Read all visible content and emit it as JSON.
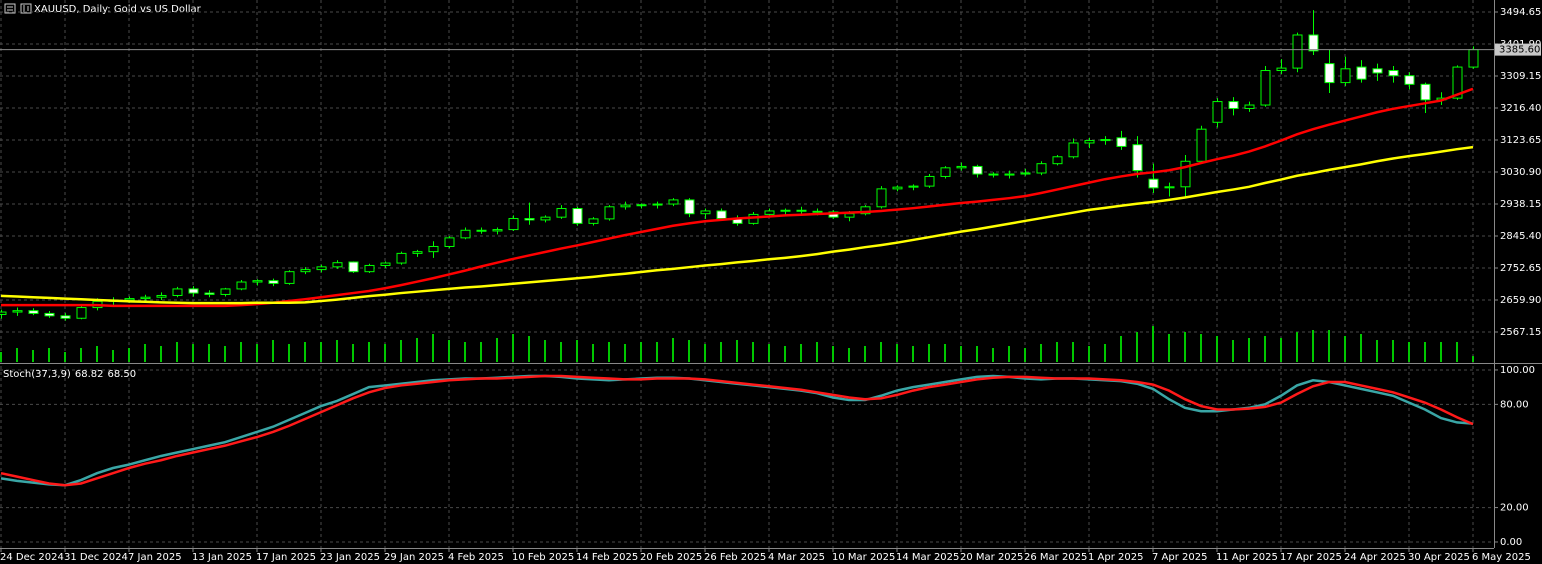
{
  "chart_data": [
    {
      "type": "candlestick",
      "title": "XAUUSD, Daily:  Gold vs US Dollar",
      "categories": [
        "24 Dec 2024",
        null,
        null,
        null,
        "31 Dec 2024",
        null,
        null,
        null,
        "7 Jan 2025",
        null,
        null,
        null,
        "13 Jan 2025",
        null,
        null,
        null,
        "17 Jan 2025",
        null,
        null,
        null,
        "23 Jan 2025",
        null,
        null,
        null,
        "29 Jan 2025",
        null,
        null,
        null,
        "4 Feb 2025",
        null,
        null,
        null,
        "10 Feb 2025",
        null,
        null,
        null,
        "14 Feb 2025",
        null,
        null,
        null,
        "20 Feb 2025",
        null,
        null,
        null,
        "26 Feb 2025",
        null,
        null,
        null,
        "4 Mar 2025",
        null,
        null,
        null,
        "10 Mar 2025",
        null,
        null,
        null,
        "14 Mar 2025",
        null,
        null,
        null,
        "20 Mar 2025",
        null,
        null,
        null,
        "26 Mar 2025",
        null,
        null,
        null,
        "1 Apr 2025",
        null,
        null,
        null,
        "7 Apr 2025",
        null,
        null,
        null,
        "11 Apr 2025",
        null,
        null,
        null,
        "17 Apr 2025",
        null,
        null,
        null,
        "24 Apr 2025",
        null,
        null,
        null,
        "30 Apr 2025",
        null,
        null,
        null,
        "6 May 2025"
      ],
      "open": [
        2618,
        2625,
        2629,
        2621,
        2614,
        2607,
        2638,
        2656,
        2660,
        2664,
        2668,
        2673,
        2692,
        2680,
        2676,
        2692,
        2712,
        2716,
        2708,
        2742,
        2748,
        2756,
        2770,
        2742,
        2760,
        2767,
        2795,
        2800,
        2815,
        2840,
        2862,
        2860,
        2864,
        2896,
        2892,
        2900,
        2925,
        2882,
        2895,
        2930,
        2935,
        2936,
        2938,
        2950,
        2910,
        2918,
        2896,
        2882,
        2908,
        2918,
        2920,
        2917,
        2915,
        2900,
        2910,
        2930,
        2982,
        2987,
        2990,
        3018,
        3043,
        3047,
        3025,
        3022,
        3025,
        3028,
        3055,
        3075,
        3115,
        3122,
        3130,
        3110,
        3010,
        2985,
        2988,
        3062,
        3175,
        3235,
        3215,
        3225,
        3325,
        3332,
        3428,
        3345,
        3290,
        3335,
        3330,
        3325,
        3310,
        3285,
        3240,
        3245,
        3335
      ],
      "high": [
        2632,
        2638,
        2636,
        2628,
        2622,
        2642,
        2665,
        2668,
        2670,
        2675,
        2682,
        2698,
        2700,
        2688,
        2695,
        2718,
        2720,
        2722,
        2746,
        2755,
        2762,
        2775,
        2772,
        2765,
        2772,
        2800,
        2805,
        2830,
        2845,
        2870,
        2870,
        2870,
        2905,
        2942,
        2905,
        2935,
        2930,
        2900,
        2935,
        2945,
        2940,
        2945,
        2955,
        2955,
        2925,
        2925,
        2905,
        2915,
        2925,
        2925,
        2930,
        2925,
        2920,
        2918,
        2935,
        2990,
        2992,
        2995,
        3025,
        3048,
        3058,
        3052,
        3030,
        3035,
        3040,
        3062,
        3080,
        3128,
        3130,
        3135,
        3150,
        3135,
        3055,
        3000,
        3080,
        3165,
        3245,
        3248,
        3235,
        3338,
        3358,
        3435,
        3500,
        3385,
        3365,
        3355,
        3345,
        3338,
        3320,
        3290,
        3262,
        3340,
        3395
      ],
      "low": [
        2606,
        2614,
        2616,
        2608,
        2600,
        2604,
        2630,
        2640,
        2652,
        2655,
        2660,
        2668,
        2670,
        2668,
        2670,
        2688,
        2702,
        2700,
        2704,
        2735,
        2740,
        2750,
        2738,
        2738,
        2752,
        2762,
        2785,
        2782,
        2810,
        2836,
        2852,
        2850,
        2860,
        2878,
        2885,
        2895,
        2875,
        2876,
        2890,
        2922,
        2925,
        2925,
        2932,
        2900,
        2895,
        2890,
        2875,
        2878,
        2900,
        2905,
        2908,
        2905,
        2895,
        2888,
        2905,
        2925,
        2975,
        2978,
        2985,
        3012,
        3035,
        3015,
        3015,
        3012,
        3020,
        3022,
        3050,
        3070,
        3100,
        3110,
        3095,
        3015,
        2970,
        2960,
        2960,
        3055,
        3160,
        3195,
        3205,
        3220,
        3315,
        3320,
        3370,
        3260,
        3280,
        3290,
        3295,
        3290,
        3270,
        3202,
        3225,
        3240,
        3330
      ],
      "close": [
        2625,
        2629,
        2621,
        2614,
        2607,
        2638,
        2656,
        2660,
        2664,
        2668,
        2673,
        2692,
        2680,
        2676,
        2692,
        2712,
        2716,
        2708,
        2742,
        2748,
        2756,
        2768,
        2742,
        2760,
        2767,
        2795,
        2800,
        2815,
        2840,
        2862,
        2860,
        2864,
        2896,
        2892,
        2900,
        2925,
        2882,
        2895,
        2930,
        2935,
        2936,
        2938,
        2950,
        2910,
        2918,
        2896,
        2882,
        2908,
        2918,
        2920,
        2917,
        2915,
        2900,
        2910,
        2930,
        2982,
        2987,
        2990,
        3018,
        3043,
        3047,
        3025,
        3022,
        3025,
        3028,
        3055,
        3075,
        3115,
        3122,
        3125,
        3105,
        3035,
        2985,
        2988,
        3062,
        3155,
        3235,
        3215,
        3225,
        3325,
        3332,
        3428,
        3382,
        3290,
        3330,
        3300,
        3318,
        3310,
        3285,
        3240,
        3245,
        3335,
        3385.6
      ],
      "volume": [
        10,
        14,
        12,
        14,
        10,
        14,
        16,
        12,
        14,
        18,
        16,
        20,
        18,
        18,
        16,
        20,
        18,
        22,
        18,
        20,
        20,
        22,
        18,
        20,
        18,
        22,
        24,
        28,
        22,
        20,
        20,
        24,
        28,
        26,
        22,
        20,
        22,
        18,
        20,
        18,
        20,
        20,
        24,
        22,
        18,
        20,
        22,
        20,
        18,
        16,
        18,
        20,
        16,
        14,
        16,
        20,
        18,
        16,
        18,
        18,
        16,
        16,
        14,
        16,
        14,
        18,
        20,
        20,
        16,
        18,
        26,
        30,
        36,
        28,
        30,
        28,
        26,
        22,
        24,
        26,
        24,
        30,
        32,
        32,
        26,
        28,
        22,
        22,
        20,
        20,
        20,
        20,
        6
      ],
      "candle_color": "#00ff00",
      "up_fill": "#000000",
      "down_fill": "#ffffff",
      "volume_color": "#00c800",
      "series": [
        {
          "color": "#ff0000",
          "values": [
            2645,
            2645,
            2645,
            2645,
            2645,
            2645,
            2645,
            2643,
            2643,
            2643,
            2643,
            2643,
            2643,
            2643,
            2643,
            2645,
            2648,
            2652,
            2657,
            2662,
            2668,
            2674,
            2680,
            2686,
            2694,
            2703,
            2713,
            2723,
            2734,
            2745,
            2757,
            2768,
            2779,
            2789,
            2799,
            2809,
            2818,
            2828,
            2838,
            2848,
            2857,
            2866,
            2875,
            2882,
            2888,
            2892,
            2896,
            2899,
            2902,
            2905,
            2907,
            2909,
            2911,
            2913,
            2915,
            2918,
            2922,
            2926,
            2931,
            2936,
            2941,
            2945,
            2950,
            2955,
            2961,
            2970,
            2980,
            2990,
            3000,
            3010,
            3018,
            3025,
            3030,
            3036,
            3045,
            3057,
            3068,
            3078,
            3090,
            3105,
            3122,
            3140,
            3155,
            3168,
            3180,
            3192,
            3204,
            3214,
            3222,
            3230,
            3238,
            3255,
            3272
          ]
        },
        {
          "color": "#ffff00",
          "values": [
            2672,
            2670,
            2668,
            2666,
            2664,
            2662,
            2660,
            2658,
            2656,
            2655,
            2653,
            2652,
            2651,
            2651,
            2651,
            2651,
            2652,
            2652,
            2652,
            2653,
            2657,
            2661,
            2666,
            2671,
            2675,
            2680,
            2684,
            2688,
            2692,
            2696,
            2699,
            2703,
            2707,
            2711,
            2715,
            2719,
            2723,
            2727,
            2732,
            2736,
            2741,
            2746,
            2750,
            2755,
            2760,
            2764,
            2769,
            2773,
            2778,
            2782,
            2787,
            2793,
            2800,
            2806,
            2813,
            2819,
            2826,
            2834,
            2842,
            2850,
            2858,
            2865,
            2873,
            2881,
            2889,
            2897,
            2905,
            2913,
            2921,
            2927,
            2933,
            2939,
            2944,
            2950,
            2957,
            2965,
            2973,
            2980,
            2988,
            2999,
            3009,
            3020,
            3028,
            3037,
            3045,
            3053,
            3062,
            3070,
            3077,
            3083,
            3090,
            3097,
            3103
          ]
        }
      ],
      "last_price": {
        "value": 3385.6,
        "label": "3385.60"
      },
      "ylim": [
        2480.2,
        3529.4
      ],
      "yticks": [
        3494.65,
        {
          "value": 3401.9,
          "label": "3401.90"
        },
        3309.15,
        {
          "value": 3216.4,
          "label": "3216.40"
        },
        3123.65,
        {
          "value": 3030.9,
          "label": "3030.90"
        },
        2938.15,
        {
          "value": 2845.4,
          "label": "2845.40"
        },
        2752.65,
        {
          "value": 2659.9,
          "label": "2659.90"
        },
        2567.15
      ],
      "grid": true
    },
    {
      "type": "line",
      "title": "Stoch(37,3,9)",
      "readout": [
        68.82,
        {
          "value": 68.5,
          "label": "68.50"
        }
      ],
      "series": [
        {
          "color": "#3aa6a6",
          "values": [
            37,
            35.5,
            34.5,
            33.5,
            33,
            36,
            40,
            43,
            45,
            47.5,
            50,
            52,
            54,
            56,
            58,
            61,
            64,
            67,
            71,
            75,
            79,
            82,
            86,
            90,
            91,
            92,
            93,
            94,
            94.5,
            95,
            95,
            95.5,
            96,
            96.5,
            96.5,
            96,
            95,
            94.5,
            94,
            94.5,
            95,
            95.5,
            95.5,
            95,
            94,
            93,
            92,
            91,
            90,
            89,
            88,
            86.5,
            84,
            82.5,
            82.5,
            85,
            88,
            90,
            91.5,
            93,
            94.5,
            96,
            96.5,
            96,
            95,
            94.5,
            95,
            95,
            94.5,
            94,
            93.5,
            92,
            89,
            83,
            78,
            76,
            76,
            77,
            78,
            80,
            85,
            91,
            94,
            93,
            91,
            89,
            87,
            85,
            81,
            77,
            72,
            69.5,
            68.82
          ]
        },
        {
          "color": "#ff1a1a",
          "values": [
            40,
            38,
            36,
            34,
            33,
            34,
            37,
            40,
            43,
            45.5,
            47.5,
            50,
            52,
            54,
            56,
            58.5,
            61,
            64,
            67.5,
            71.5,
            75.5,
            79.5,
            83.5,
            87,
            89.5,
            91,
            92,
            93,
            94,
            94.5,
            95,
            95,
            95.5,
            96,
            96.5,
            96.5,
            96,
            95.5,
            95,
            94.5,
            94.5,
            95,
            95,
            95,
            94.5,
            93.5,
            92.5,
            91.5,
            90.5,
            89.5,
            88.5,
            87,
            85.5,
            84,
            83,
            83.5,
            85.5,
            88,
            90,
            91.5,
            93,
            94.5,
            95.5,
            96,
            96,
            95.5,
            95,
            95,
            95,
            94.5,
            94,
            93,
            91.5,
            88,
            83,
            79,
            77,
            77,
            77.5,
            78.5,
            81,
            86,
            90.5,
            93,
            93,
            91,
            89,
            87,
            84,
            81,
            77,
            72.5,
            68.5
          ]
        }
      ],
      "ylim": [
        -3.5,
        102.3
      ],
      "yticks": [
        {
          "value": 100,
          "label": "100.00"
        },
        {
          "value": 80,
          "label": "80.00"
        },
        {
          "value": 20,
          "label": "20.00"
        },
        {
          "value": 0,
          "label": "0.00"
        }
      ],
      "grid": true
    }
  ]
}
